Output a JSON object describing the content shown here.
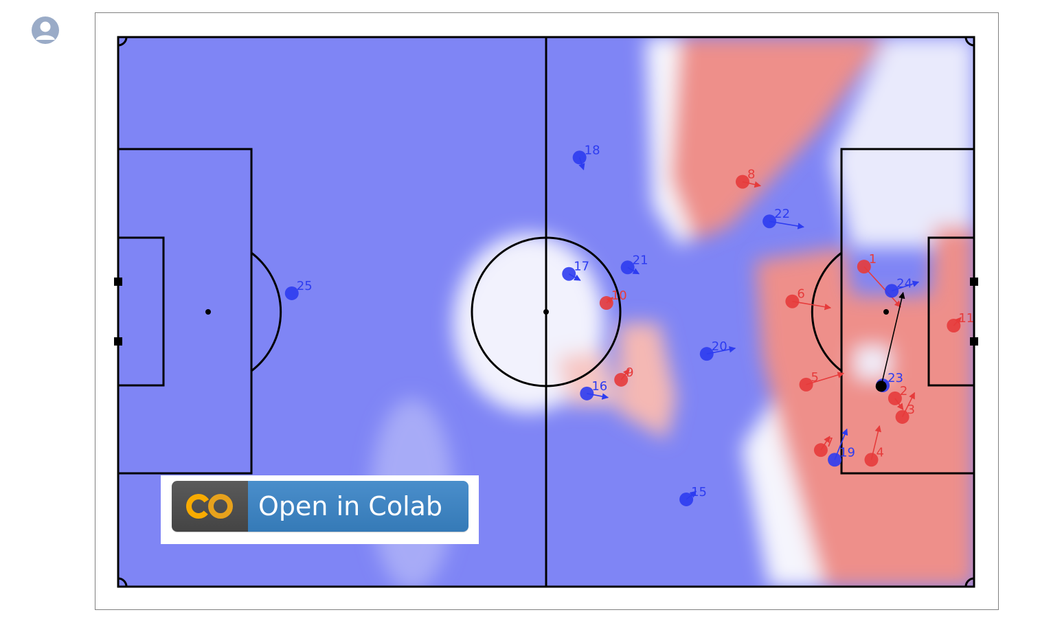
{
  "page": {
    "avatar_icon": "user-avatar-icon"
  },
  "colab_badge": {
    "label": "Open in Colab",
    "logo": "CO",
    "icon": "colab-logo-icon"
  },
  "chart_data": {
    "type": "scatter",
    "pitch": {
      "length": 105,
      "width": 68
    },
    "grid": false,
    "colors": {
      "home": "#e63b3b",
      "away": "#2d3cf0",
      "home_field": "#ee8f8a",
      "away_field": "#7f85f5",
      "ball": "#000000",
      "pitch_lines": "#000000"
    },
    "series": [
      {
        "team": "home",
        "points": [
          {
            "label": "1",
            "x": 91.5,
            "y": 28.4,
            "dx": 4.5,
            "dy": 5.0
          },
          {
            "label": "2",
            "x": 95.3,
            "y": 44.7,
            "dx": 1.0,
            "dy": 1.4
          },
          {
            "label": "3",
            "x": 96.2,
            "y": 47.0,
            "dx": 1.5,
            "dy": -3.0
          },
          {
            "label": "4",
            "x": 92.4,
            "y": 52.3,
            "dx": 1.0,
            "dy": -4.2
          },
          {
            "label": "5",
            "x": 84.4,
            "y": 43.0,
            "dx": 4.6,
            "dy": -1.4
          },
          {
            "label": "6",
            "x": 82.7,
            "y": 32.7,
            "dx": 4.7,
            "dy": 0.8
          },
          {
            "label": "7",
            "x": 86.2,
            "y": 51.1,
            "dx": 1.1,
            "dy": -1.7
          },
          {
            "label": "8",
            "x": 76.6,
            "y": 17.9,
            "dx": 2.2,
            "dy": 0.5
          },
          {
            "label": "9",
            "x": 61.7,
            "y": 42.4,
            "dx": 1.0,
            "dy": -1.3
          },
          {
            "label": "10",
            "x": 59.9,
            "y": 32.9,
            "dx": 0.8,
            "dy": -0.7
          },
          {
            "label": "11",
            "x": 102.5,
            "y": 35.7,
            "dx": 0.9,
            "dy": -1.0
          }
        ]
      },
      {
        "team": "away",
        "points": [
          {
            "label": "15",
            "x": 69.7,
            "y": 57.2,
            "dx": 1.2,
            "dy": -1.0
          },
          {
            "label": "16",
            "x": 57.5,
            "y": 44.1,
            "dx": 2.6,
            "dy": 0.5
          },
          {
            "label": "17",
            "x": 55.3,
            "y": 29.3,
            "dx": 1.4,
            "dy": 0.8
          },
          {
            "label": "18",
            "x": 56.6,
            "y": 14.9,
            "dx": 0.5,
            "dy": 1.5
          },
          {
            "label": "19",
            "x": 87.9,
            "y": 52.3,
            "dx": 1.5,
            "dy": -3.8
          },
          {
            "label": "20",
            "x": 72.2,
            "y": 39.2,
            "dx": 3.5,
            "dy": -0.7
          },
          {
            "label": "21",
            "x": 62.5,
            "y": 28.5,
            "dx": 1.4,
            "dy": 0.8
          },
          {
            "label": "22",
            "x": 79.9,
            "y": 22.8,
            "dx": 4.2,
            "dy": 0.7
          },
          {
            "label": "23",
            "x": 93.8,
            "y": 43.1,
            "dx": 0.5,
            "dy": -0.5
          },
          {
            "label": "24",
            "x": 94.9,
            "y": 31.4,
            "dx": 3.3,
            "dy": -1.1
          },
          {
            "label": "25",
            "x": 21.3,
            "y": 31.7,
            "dx": 0,
            "dy": 0
          }
        ]
      }
    ],
    "ball": {
      "x": 93.6,
      "y": 43.2,
      "dx": 2.7,
      "dy": -11.6
    }
  }
}
